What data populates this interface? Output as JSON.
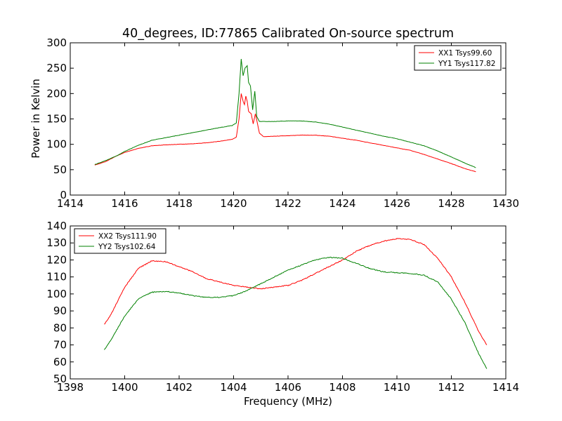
{
  "chart_data": [
    {
      "type": "line",
      "title": "40_degrees, ID:77865 Calibrated On-source spectrum",
      "xlabel": "",
      "ylabel": "Power in Kelvin",
      "xlim": [
        1414,
        1430
      ],
      "ylim": [
        0,
        300
      ],
      "xticks": [
        1414,
        1416,
        1418,
        1420,
        1422,
        1424,
        1426,
        1428,
        1430
      ],
      "yticks": [
        0,
        50,
        100,
        150,
        200,
        250,
        300
      ],
      "grid": false,
      "legend_position": "upper right",
      "series": [
        {
          "name": "XX1 Tsys99.60",
          "color": "#ff0000",
          "points": [
            [
              1414.9,
              59
            ],
            [
              1415.3,
              66
            ],
            [
              1415.7,
              77
            ],
            [
              1416.0,
              84
            ],
            [
              1416.5,
              92
            ],
            [
              1417.0,
              97
            ],
            [
              1417.5,
              99
            ],
            [
              1418.0,
              100
            ],
            [
              1418.5,
              101
            ],
            [
              1419.0,
              103
            ],
            [
              1419.5,
              106
            ],
            [
              1419.95,
              110
            ],
            [
              1420.1,
              114
            ],
            [
              1420.2,
              150
            ],
            [
              1420.28,
              200
            ],
            [
              1420.35,
              185
            ],
            [
              1420.4,
              178
            ],
            [
              1420.45,
              195
            ],
            [
              1420.5,
              185
            ],
            [
              1420.55,
              165
            ],
            [
              1420.65,
              160
            ],
            [
              1420.72,
              140
            ],
            [
              1420.8,
              160
            ],
            [
              1420.88,
              140
            ],
            [
              1420.95,
              122
            ],
            [
              1421.1,
              115
            ],
            [
              1421.5,
              116
            ],
            [
              1422.0,
              117
            ],
            [
              1422.5,
              118
            ],
            [
              1423.0,
              118
            ],
            [
              1423.5,
              116
            ],
            [
              1424.0,
              112
            ],
            [
              1424.5,
              108
            ],
            [
              1425.0,
              103
            ],
            [
              1425.5,
              98
            ],
            [
              1426.0,
              93
            ],
            [
              1426.5,
              88
            ],
            [
              1427.0,
              80
            ],
            [
              1427.5,
              71
            ],
            [
              1428.0,
              62
            ],
            [
              1428.5,
              52
            ],
            [
              1428.9,
              46
            ]
          ]
        },
        {
          "name": "YY1 Tsys117.82",
          "color": "#008000",
          "points": [
            [
              1414.9,
              60
            ],
            [
              1415.3,
              68
            ],
            [
              1415.7,
              77
            ],
            [
              1416.0,
              86
            ],
            [
              1416.5,
              98
            ],
            [
              1417.0,
              108
            ],
            [
              1417.5,
              113
            ],
            [
              1418.0,
              118
            ],
            [
              1418.5,
              123
            ],
            [
              1419.0,
              128
            ],
            [
              1419.5,
              133
            ],
            [
              1419.95,
              137
            ],
            [
              1420.1,
              142
            ],
            [
              1420.2,
              200
            ],
            [
              1420.28,
              268
            ],
            [
              1420.35,
              235
            ],
            [
              1420.42,
              250
            ],
            [
              1420.5,
              255
            ],
            [
              1420.55,
              222
            ],
            [
              1420.62,
              215
            ],
            [
              1420.7,
              168
            ],
            [
              1420.78,
              205
            ],
            [
              1420.85,
              155
            ],
            [
              1420.95,
              145
            ],
            [
              1421.1,
              145
            ],
            [
              1421.5,
              145
            ],
            [
              1422.0,
              146
            ],
            [
              1422.5,
              146
            ],
            [
              1423.0,
              144
            ],
            [
              1423.5,
              140
            ],
            [
              1424.0,
              134
            ],
            [
              1424.5,
              128
            ],
            [
              1425.0,
              122
            ],
            [
              1425.5,
              116
            ],
            [
              1426.0,
              111
            ],
            [
              1426.5,
              104
            ],
            [
              1427.0,
              97
            ],
            [
              1427.5,
              87
            ],
            [
              1428.0,
              75
            ],
            [
              1428.5,
              63
            ],
            [
              1428.9,
              54
            ]
          ]
        }
      ]
    },
    {
      "type": "line",
      "title": "",
      "xlabel": "Frequency (MHz)",
      "ylabel": "",
      "xlim": [
        1398,
        1414
      ],
      "ylim": [
        50,
        140
      ],
      "xticks": [
        1398,
        1400,
        1402,
        1404,
        1406,
        1408,
        1410,
        1412,
        1414
      ],
      "yticks": [
        50,
        60,
        70,
        80,
        90,
        100,
        110,
        120,
        130,
        140
      ],
      "grid": false,
      "legend_position": "upper left",
      "series": [
        {
          "name": "XX2 Tsys111.90",
          "color": "#ff0000",
          "points": [
            [
              1399.25,
              82
            ],
            [
              1399.5,
              88
            ],
            [
              1400.0,
              104
            ],
            [
              1400.5,
              115
            ],
            [
              1401.0,
              119.5
            ],
            [
              1401.5,
              119
            ],
            [
              1402.0,
              116
            ],
            [
              1402.5,
              113
            ],
            [
              1403.0,
              109
            ],
            [
              1403.5,
              107
            ],
            [
              1404.0,
              105
            ],
            [
              1404.5,
              104
            ],
            [
              1405.0,
              103
            ],
            [
              1405.5,
              104
            ],
            [
              1406.0,
              105
            ],
            [
              1406.5,
              108
            ],
            [
              1407.0,
              112
            ],
            [
              1407.5,
              116
            ],
            [
              1408.0,
              120
            ],
            [
              1408.5,
              125
            ],
            [
              1409.0,
              128.5
            ],
            [
              1409.5,
              131
            ],
            [
              1410.0,
              132.5
            ],
            [
              1410.5,
              132
            ],
            [
              1411.0,
              129
            ],
            [
              1411.5,
              121
            ],
            [
              1412.0,
              110
            ],
            [
              1412.5,
              95
            ],
            [
              1413.0,
              78
            ],
            [
              1413.3,
              70
            ]
          ]
        },
        {
          "name": "YY2 Tsys102.64",
          "color": "#008000",
          "points": [
            [
              1399.25,
              67
            ],
            [
              1399.5,
              73
            ],
            [
              1400.0,
              87
            ],
            [
              1400.5,
              97
            ],
            [
              1401.0,
              101
            ],
            [
              1401.5,
              101.5
            ],
            [
              1402.0,
              100.5
            ],
            [
              1402.5,
              99
            ],
            [
              1403.0,
              98
            ],
            [
              1403.5,
              98
            ],
            [
              1404.0,
              99
            ],
            [
              1404.5,
              102
            ],
            [
              1405.0,
              106
            ],
            [
              1405.5,
              110
            ],
            [
              1406.0,
              114
            ],
            [
              1406.5,
              117
            ],
            [
              1407.0,
              120
            ],
            [
              1407.5,
              121.5
            ],
            [
              1408.0,
              121
            ],
            [
              1408.5,
              118
            ],
            [
              1409.0,
              115
            ],
            [
              1409.5,
              113
            ],
            [
              1410.0,
              112.5
            ],
            [
              1410.5,
              112
            ],
            [
              1411.0,
              111
            ],
            [
              1411.5,
              107
            ],
            [
              1412.0,
              97
            ],
            [
              1412.5,
              83
            ],
            [
              1413.0,
              65
            ],
            [
              1413.3,
              56
            ]
          ]
        }
      ]
    }
  ]
}
